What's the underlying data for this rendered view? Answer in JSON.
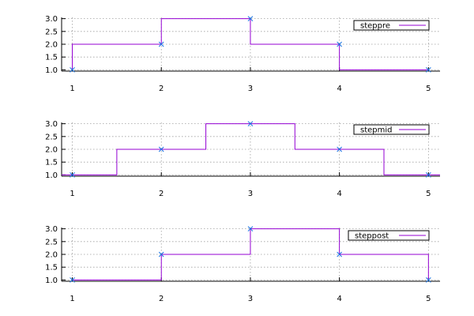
{
  "chart_data": [
    {
      "type": "line",
      "step": "pre",
      "x": [
        1,
        2,
        3,
        4,
        5
      ],
      "y": [
        1,
        2,
        3,
        2,
        1
      ],
      "xticks": [
        "1",
        "2",
        "3",
        "4",
        "5"
      ],
      "yticks": [
        "1.0",
        "1.5",
        "2.0",
        "2.5",
        "3.0"
      ],
      "xlim": [
        0.88,
        5.13
      ],
      "ylim": [
        0.95,
        3.05
      ],
      "grid": true,
      "legend": {
        "placement": "top-right",
        "entries": [
          "steppre"
        ]
      },
      "colors": {
        "line": "#9400d3",
        "marker": "#1f77e4"
      },
      "series": [
        {
          "name": "steppre",
          "x": [
            1,
            2,
            3,
            4,
            5
          ],
          "y": [
            1,
            2,
            3,
            2,
            1
          ]
        }
      ]
    },
    {
      "type": "line",
      "step": "mid",
      "x": [
        1,
        2,
        3,
        4,
        5
      ],
      "y": [
        1,
        2,
        3,
        2,
        1
      ],
      "xticks": [
        "1",
        "2",
        "3",
        "4",
        "5"
      ],
      "yticks": [
        "1.0",
        "1.5",
        "2.0",
        "2.5",
        "3.0"
      ],
      "xlim": [
        0.88,
        5.13
      ],
      "ylim": [
        0.95,
        3.05
      ],
      "grid": true,
      "legend": {
        "placement": "top-right",
        "entries": [
          "stepmid"
        ]
      },
      "colors": {
        "line": "#9400d3",
        "marker": "#1f77e4"
      },
      "series": [
        {
          "name": "stepmid",
          "x": [
            1,
            2,
            3,
            4,
            5
          ],
          "y": [
            1,
            2,
            3,
            2,
            1
          ]
        }
      ]
    },
    {
      "type": "line",
      "step": "post",
      "x": [
        1,
        2,
        3,
        4,
        5
      ],
      "y": [
        1,
        2,
        3,
        2,
        1
      ],
      "xticks": [
        "1",
        "2",
        "3",
        "4",
        "5"
      ],
      "yticks": [
        "1.0",
        "1.5",
        "2.0",
        "2.5",
        "3.0"
      ],
      "xlim": [
        0.88,
        5.13
      ],
      "ylim": [
        0.95,
        3.05
      ],
      "grid": true,
      "legend": {
        "placement": "top-right",
        "entries": [
          "steppost"
        ]
      },
      "colors": {
        "line": "#9400d3",
        "marker": "#1f77e4"
      },
      "series": [
        {
          "name": "steppost",
          "x": [
            1,
            2,
            3,
            4,
            5
          ],
          "y": [
            1,
            2,
            3,
            2,
            1
          ]
        }
      ]
    }
  ]
}
